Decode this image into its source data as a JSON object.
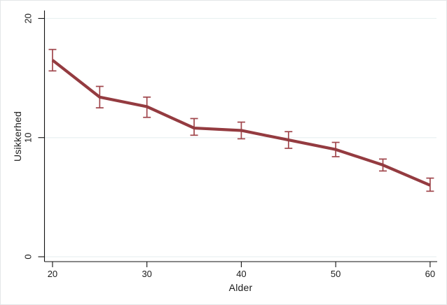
{
  "chart_data": {
    "type": "line",
    "title": "",
    "xlabel": "Alder",
    "ylabel": "Usikkerhed",
    "x": [
      20,
      25,
      30,
      35,
      40,
      45,
      50,
      55,
      60
    ],
    "series": [
      {
        "name": "Usikkerhed",
        "values": [
          16.5,
          13.4,
          12.6,
          10.8,
          10.6,
          9.8,
          9.0,
          7.7,
          6.0
        ]
      }
    ],
    "ci_low": [
      15.6,
      12.5,
      11.7,
      10.2,
      9.9,
      9.1,
      8.4,
      7.2,
      5.5
    ],
    "ci_high": [
      17.4,
      14.3,
      13.4,
      11.6,
      11.3,
      10.5,
      9.6,
      8.2,
      6.6
    ],
    "x_ticks": [
      20,
      30,
      40,
      50,
      60
    ],
    "y_ticks": [
      0,
      10,
      20
    ],
    "xlim": [
      19.15,
      60.75
    ],
    "ylim": [
      -0.41,
      20.67
    ],
    "grid": "horizontal-only",
    "legend": "none",
    "colors": {
      "line": "#943B40",
      "error_bar": "#A0464C",
      "grid": "#E9F1F2",
      "axis": "#111111",
      "text": "#1B1B1B",
      "background": "#FFFFFF",
      "frame": "#E3E6E8"
    }
  }
}
